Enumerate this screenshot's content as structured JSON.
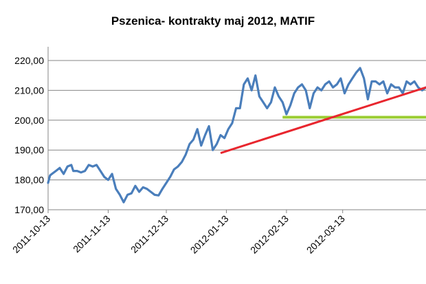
{
  "chart_data": {
    "type": "line",
    "title": "Pszenica- kontrakty maj 2012, MATIF",
    "xlabel": "",
    "ylabel": "",
    "ylim": [
      170,
      220
    ],
    "y_ticks": [
      "170,00",
      "180,00",
      "190,00",
      "200,00",
      "210,00",
      "220,00"
    ],
    "y_tick_values": [
      170,
      180,
      190,
      200,
      210,
      220
    ],
    "x_range": [
      "2011-10-13",
      "2012-04-25"
    ],
    "x_ticks": [
      "2011-10-13",
      "2011-11-13",
      "2011-12-13",
      "2012-01-13",
      "2012-02-13",
      "2012-03-13"
    ],
    "grid": true,
    "legend": "none",
    "colors": {
      "price": "#4a7ebb",
      "trend": "#e8262e",
      "level": "#9acd32",
      "grid": "#868686"
    },
    "series": [
      {
        "color": "#4a7ebb",
        "x": [
          "2011-10-13",
          "2011-10-14",
          "2011-10-15",
          "2011-10-17",
          "2011-10-19",
          "2011-10-21",
          "2011-10-23",
          "2011-10-25",
          "2011-10-26",
          "2011-10-28",
          "2011-10-30",
          "2011-11-01",
          "2011-11-03",
          "2011-11-05",
          "2011-11-07",
          "2011-11-09",
          "2011-11-11",
          "2011-11-13",
          "2011-11-15",
          "2011-11-17",
          "2011-11-19",
          "2011-11-21",
          "2011-11-23",
          "2011-11-25",
          "2011-11-27",
          "2011-11-29",
          "2011-12-01",
          "2011-12-03",
          "2011-12-05",
          "2011-12-07",
          "2011-12-09",
          "2011-12-11",
          "2011-12-13",
          "2011-12-15",
          "2011-12-17",
          "2011-12-19",
          "2011-12-21",
          "2011-12-23",
          "2011-12-25",
          "2011-12-27",
          "2011-12-29",
          "2011-12-31",
          "2012-01-02",
          "2012-01-04",
          "2012-01-06",
          "2012-01-08",
          "2012-01-10",
          "2012-01-12",
          "2012-01-14",
          "2012-01-16",
          "2012-01-18",
          "2012-01-20",
          "2012-01-22",
          "2012-01-24",
          "2012-01-26",
          "2012-01-28",
          "2012-01-30",
          "2012-02-01",
          "2012-02-03",
          "2012-02-05",
          "2012-02-07",
          "2012-02-09",
          "2012-02-11",
          "2012-02-13",
          "2012-02-15",
          "2012-02-17",
          "2012-02-19",
          "2012-02-21",
          "2012-02-23",
          "2012-02-25",
          "2012-02-27",
          "2012-02-29",
          "2012-03-02",
          "2012-03-04",
          "2012-03-06",
          "2012-03-08",
          "2012-03-10",
          "2012-03-12",
          "2012-03-14",
          "2012-03-16",
          "2012-03-18",
          "2012-03-20",
          "2012-03-22",
          "2012-03-24",
          "2012-03-26",
          "2012-03-28",
          "2012-03-30",
          "2012-04-01",
          "2012-04-03",
          "2012-04-05",
          "2012-04-07",
          "2012-04-09",
          "2012-04-11",
          "2012-04-13",
          "2012-04-15",
          "2012-04-17",
          "2012-04-19",
          "2012-04-21",
          "2012-04-23",
          "2012-04-25"
        ],
        "y": [
          179.0,
          181.5,
          182.0,
          183.0,
          184.0,
          182.0,
          184.5,
          185.0,
          183.0,
          183.0,
          182.5,
          183.0,
          185.0,
          184.5,
          185.0,
          183.0,
          181.0,
          180.0,
          182.0,
          177.0,
          175.0,
          172.5,
          175.0,
          175.5,
          178.0,
          176.0,
          177.5,
          177.0,
          176.0,
          175.0,
          174.8,
          177.0,
          179.0,
          181.0,
          183.5,
          184.5,
          186.0,
          188.5,
          192.0,
          193.5,
          197.0,
          191.5,
          195.0,
          198.0,
          190.0,
          192.0,
          195.0,
          194.0,
          197.0,
          199.0,
          204.0,
          204.0,
          212.0,
          214.0,
          210.0,
          215.0,
          208.0,
          206.0,
          204.0,
          206.0,
          211.0,
          208.0,
          206.0,
          202.0,
          205.0,
          209.0,
          211.0,
          212.0,
          210.0,
          204.0,
          209.0,
          211.0,
          210.0,
          212.0,
          213.0,
          211.0,
          212.0,
          214.0,
          209.0,
          212.0,
          214.0,
          216.0,
          217.5,
          214.0,
          207.0,
          213.0,
          213.0,
          212.0,
          213.0,
          209.0,
          212.0,
          211.0,
          211.0,
          209.0,
          213.0,
          212.0,
          213.0,
          211.0,
          210.0,
          211.0
        ]
      }
    ],
    "trend_line": {
      "x": [
        "2012-01-10",
        "2012-04-25"
      ],
      "y": [
        189.0,
        211.0
      ],
      "color": "#e8262e"
    },
    "level_line": {
      "x": [
        "2012-02-11",
        "2012-04-25"
      ],
      "y": [
        201.0,
        201.0
      ],
      "color": "#9acd32"
    }
  }
}
